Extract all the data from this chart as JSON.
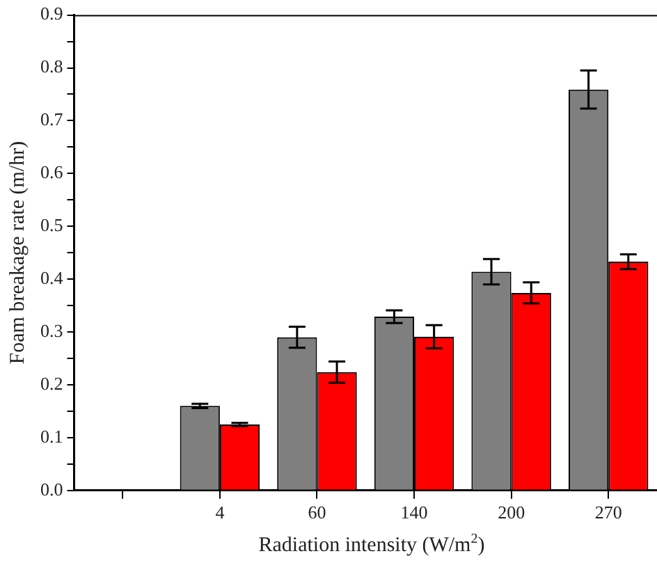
{
  "chart_data": {
    "type": "bar",
    "xlabel": "Radiation intensity (W/m$^{2}$)",
    "ylabel": "Foam breakage rate (m/hr)",
    "categories": [
      null,
      "4",
      "60",
      "140",
      "200",
      "270"
    ],
    "series": [
      {
        "color": "#7f7f7f",
        "values": [
          null,
          0.16,
          0.29,
          0.329,
          0.414,
          0.759
        ],
        "errors": [
          null,
          0.004,
          0.02,
          0.012,
          0.024,
          0.036
        ]
      },
      {
        "color": "#ff0000",
        "values": [
          null,
          0.125,
          0.224,
          0.291,
          0.374,
          0.433
        ],
        "errors": [
          null,
          0.003,
          0.02,
          0.022,
          0.02,
          0.014
        ]
      }
    ],
    "ylim": [
      0,
      0.9
    ],
    "yticks": [
      {
        "value": 0,
        "label": "0.0"
      },
      {
        "value": 0.05,
        "label": null
      },
      {
        "value": 0.1,
        "label": "0.1"
      },
      {
        "value": 0.15,
        "label": null
      },
      {
        "value": 0.2,
        "label": "0.2"
      },
      {
        "value": 0.25,
        "label": null
      },
      {
        "value": 0.3,
        "label": "0.3"
      },
      {
        "value": 0.35,
        "label": null
      },
      {
        "value": 0.4,
        "label": "0.4"
      },
      {
        "value": 0.45,
        "label": null
      },
      {
        "value": 0.5,
        "label": "0.5"
      },
      {
        "value": 0.55,
        "label": null
      },
      {
        "value": 0.6,
        "label": "0.6"
      },
      {
        "value": 0.65,
        "label": null
      },
      {
        "value": 0.7,
        "label": "0.7"
      },
      {
        "value": 0.75,
        "label": null
      },
      {
        "value": 0.8,
        "label": "0.8"
      },
      {
        "value": 0.85,
        "label": null
      },
      {
        "value": 0.9,
        "label": "0.9"
      }
    ],
    "grid": false,
    "legend": false
  }
}
